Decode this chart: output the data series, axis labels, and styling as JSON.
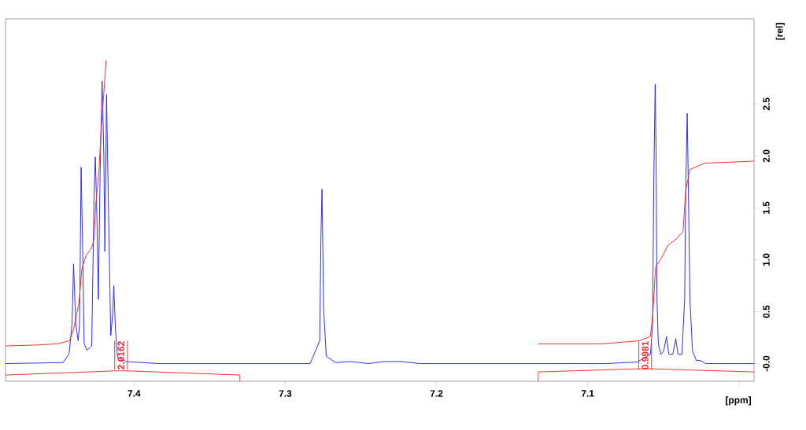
{
  "chart_data": {
    "type": "line",
    "xlabel": "[ppm]",
    "ylabel": "[rel]",
    "xlim": [
      7.485,
      6.99
    ],
    "ylim": [
      -0.17,
      3.32
    ],
    "xticks": [
      7.4,
      7.3,
      7.2,
      7.1,
      {
        "value": 7.0,
        "label": null
      }
    ],
    "yticks": [
      {
        "value": 0,
        "label": "-0.0"
      },
      0.5,
      {
        "value": 1.0,
        "label": "1.0"
      },
      1.5,
      {
        "value": 2.0,
        "label": "2.0"
      },
      2.5
    ],
    "annotations": [
      {
        "text": "2.0162",
        "x": 7.4086,
        "y": 0.08
      },
      {
        "text": "0.9981",
        "x": 7.062,
        "y": 0.08
      }
    ],
    "series": [
      {
        "color": "#1e1eff",
        "x": [
          7.485,
          7.447,
          7.443,
          7.441,
          7.44,
          7.4385,
          7.437,
          7.436,
          7.435,
          7.434,
          7.433,
          7.431,
          7.428,
          7.4264,
          7.4256,
          7.4245,
          7.4236,
          7.4223,
          7.4211,
          7.42,
          7.4193,
          7.4182,
          7.4169,
          7.4154,
          7.4142,
          7.4134,
          7.4123,
          7.4109,
          7.4054,
          7.3836,
          7.2836,
          7.2772,
          7.2764,
          7.2757,
          7.2746,
          7.2729,
          7.2668,
          7.2564,
          7.245,
          7.2347,
          7.223,
          7.211,
          7.088,
          7.0672,
          7.0655,
          7.0585,
          7.0571,
          7.0563,
          7.0554,
          7.0548,
          7.0542,
          7.0533,
          7.0516,
          7.0498,
          7.0479,
          7.0464,
          7.0437,
          7.0418,
          7.0403,
          7.0377,
          7.0359,
          7.0351,
          7.0342,
          7.0335,
          7.0324,
          7.0307,
          7.0281,
          7.0255,
          7.022,
          6.99
        ],
        "values": [
          0,
          0.01,
          0.09,
          0.38,
          0.96,
          0.38,
          0.22,
          0.38,
          1.89,
          1.12,
          0.19,
          0.13,
          0.17,
          1.65,
          1.99,
          1.38,
          0.62,
          1.97,
          2.72,
          2.02,
          1.08,
          2.59,
          1.49,
          0.27,
          0.46,
          0.75,
          0.33,
          0.06,
          0.02,
          0,
          0,
          0.22,
          1.23,
          1.68,
          0.52,
          0.07,
          0.01,
          0.02,
          0,
          0.02,
          0.02,
          0,
          0,
          0.015,
          0.03,
          0.09,
          0.37,
          1.76,
          2.69,
          2.04,
          0.62,
          0.19,
          0.09,
          0.12,
          0.26,
          0.09,
          0.09,
          0.24,
          0.09,
          0.09,
          0.62,
          1.76,
          2.41,
          1.76,
          0.62,
          0.12,
          0.03,
          0.03,
          0,
          0
        ]
      },
      {
        "color": "#ff2020",
        "x": [
          7.485,
          7.4636,
          7.4509,
          7.4427,
          7.44,
          7.4364,
          7.4345,
          7.4318,
          7.4282,
          7.4264,
          7.4254,
          7.4232,
          7.4215,
          7.42,
          7.4185
        ],
        "values": [
          0.17,
          0.18,
          0.19,
          0.22,
          0.33,
          0.59,
          0.91,
          1.04,
          1.11,
          1.2,
          1.52,
          1.86,
          2.31,
          2.6,
          2.92
        ]
      },
      {
        "color": "#ff2020",
        "x": [
          7.1327,
          7.0911,
          7.0659,
          7.0586,
          7.0569,
          7.0551,
          7.0515,
          7.0469,
          7.0415,
          7.037,
          7.0352,
          7.0325,
          7.0226,
          6.99
        ],
        "values": [
          0.19,
          0.19,
          0.22,
          0.26,
          0.48,
          0.93,
          1.01,
          1.14,
          1.2,
          1.27,
          1.66,
          1.87,
          1.93,
          1.95
        ]
      },
      {
        "color": "#ff2020",
        "x": [
          7.485,
          7.4126,
          7.4045,
          7.33,
          7.33
        ],
        "values": [
          -0.11,
          -0.07,
          -0.07,
          -0.11,
          -0.17
        ]
      },
      {
        "color": "#ff2020",
        "x": [
          7.1327,
          7.1327,
          7.0659,
          7.0586,
          6.99
        ],
        "values": [
          -0.17,
          -0.08,
          -0.05,
          -0.05,
          -0.08
        ]
      }
    ]
  }
}
